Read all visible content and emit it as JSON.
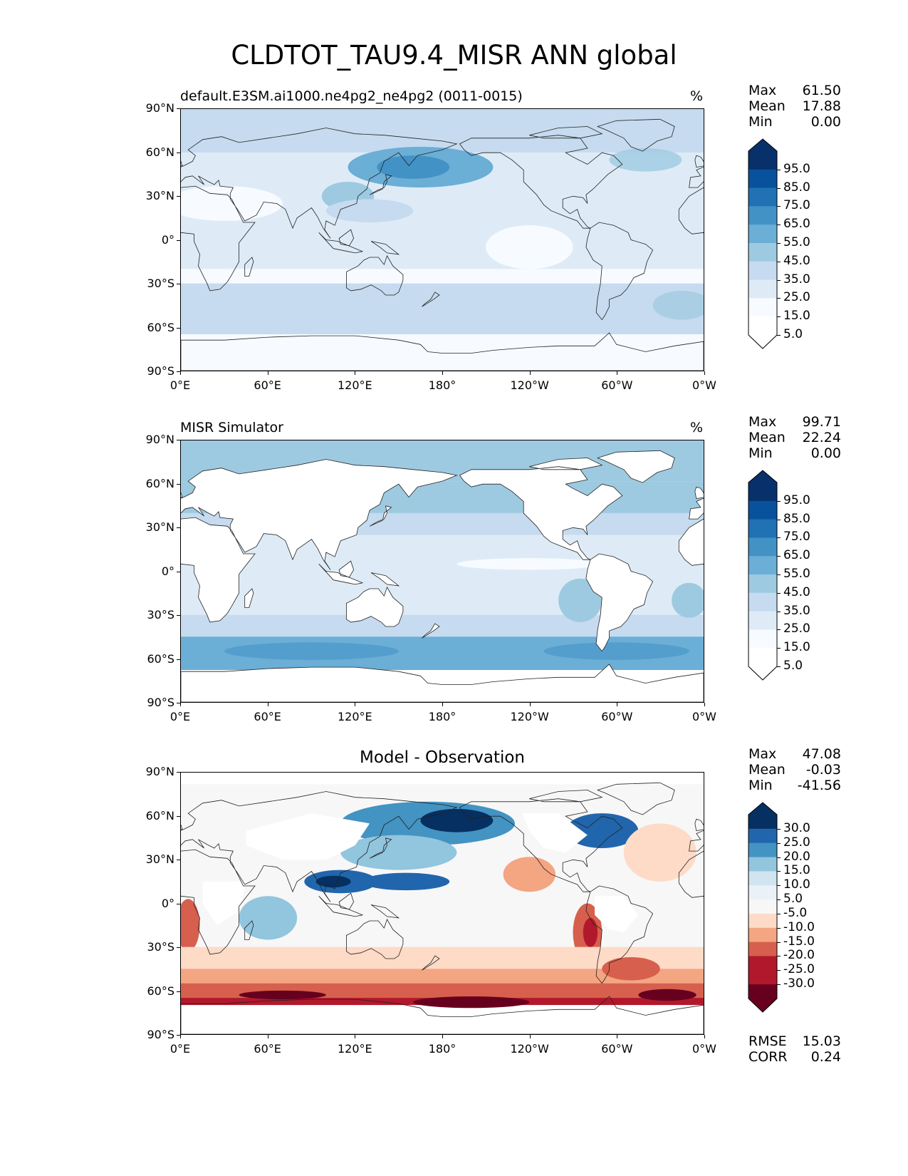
{
  "title": "CLDTOT_TAU9.4_MISR ANN global",
  "panels": [
    {
      "id": "model",
      "title": "default.E3SM.ai1000.ne4pg2_ne4pg2 (0011-0015)",
      "center_title": "",
      "units": "%",
      "stats": [
        {
          "label": "Max",
          "value": "61.50"
        },
        {
          "label": "Mean",
          "value": "17.88"
        },
        {
          "label": "Min",
          "value": "0.00"
        }
      ],
      "extra_stats": [],
      "colorbar": {
        "labels": [
          "95.0",
          "85.0",
          "75.0",
          "65.0",
          "55.0",
          "45.0",
          "35.0",
          "25.0",
          "15.0",
          "5.0"
        ],
        "colors": [
          "#08306b",
          "#08519c",
          "#2171b5",
          "#4292c6",
          "#6baed6",
          "#9ecae1",
          "#c6dbef",
          "#deebf7",
          "#f7fbff",
          "#ffffff"
        ],
        "cap_top": "#08306b",
        "cap_bottom": "#ffffff"
      }
    },
    {
      "id": "obs",
      "title": "MISR Simulator",
      "center_title": "",
      "units": "%",
      "stats": [
        {
          "label": "Max",
          "value": "99.71"
        },
        {
          "label": "Mean",
          "value": "22.24"
        },
        {
          "label": "Min",
          "value": "0.00"
        }
      ],
      "extra_stats": [],
      "colorbar": {
        "labels": [
          "95.0",
          "85.0",
          "75.0",
          "65.0",
          "55.0",
          "45.0",
          "35.0",
          "25.0",
          "15.0",
          "5.0"
        ],
        "colors": [
          "#08306b",
          "#08519c",
          "#2171b5",
          "#4292c6",
          "#6baed6",
          "#9ecae1",
          "#c6dbef",
          "#deebf7",
          "#f7fbff",
          "#ffffff"
        ],
        "cap_top": "#08306b",
        "cap_bottom": "#ffffff"
      }
    },
    {
      "id": "diff",
      "title": "",
      "center_title": "Model - Observation",
      "units": "",
      "stats": [
        {
          "label": "Max",
          "value": "47.08"
        },
        {
          "label": "Mean",
          "value": "-0.03"
        },
        {
          "label": "Min",
          "value": "-41.56"
        }
      ],
      "extra_stats": [
        {
          "label": "RMSE",
          "value": "15.03"
        },
        {
          "label": "CORR",
          "value": "0.24"
        }
      ],
      "colorbar": {
        "labels": [
          "30.0",
          "25.0",
          "20.0",
          "15.0",
          "10.0",
          "5.0",
          "-5.0",
          "-10.0",
          "-15.0",
          "-20.0",
          "-25.0",
          "-30.0"
        ],
        "colors": [
          "#053061",
          "#2166ac",
          "#4393c3",
          "#92c5de",
          "#d1e5f0",
          "#eaf2f8",
          "#f7f7f7",
          "#fddbc7",
          "#f4a582",
          "#d6604d",
          "#b2182b",
          "#b2182b",
          "#67001f"
        ],
        "cap_top": "#053061",
        "cap_bottom": "#67001f"
      }
    }
  ],
  "axes": {
    "xticks": [
      "0°E",
      "60°E",
      "120°E",
      "180°",
      "120°W",
      "60°W",
      "0°W"
    ],
    "yticks": [
      "90°N",
      "60°N",
      "30°N",
      "0°",
      "30°S",
      "60°S",
      "90°S"
    ]
  }
}
